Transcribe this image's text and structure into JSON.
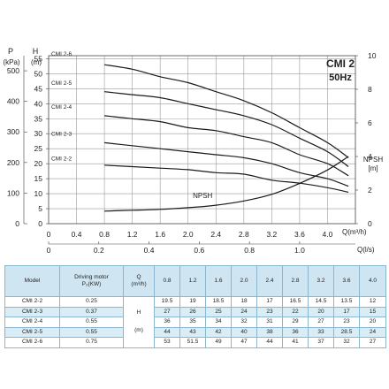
{
  "chart_data": {
    "type": "line",
    "title": "CMI 2",
    "subtitle": "50Hz",
    "y_left_outer": {
      "label": "P",
      "unit": "(kPa)",
      "ticks": [
        "0",
        "100",
        "200",
        "300",
        "400",
        "500"
      ],
      "range": [
        0,
        560
      ]
    },
    "y_left_inner": {
      "label": "H",
      "unit": "(m)",
      "ticks": [
        "0",
        "5",
        "10",
        "15",
        "20",
        "25",
        "30",
        "35",
        "40",
        "45",
        "50",
        "55"
      ],
      "range": [
        0,
        56
      ]
    },
    "y_right": {
      "label": "NPSH",
      "unit": "[m]",
      "ticks": [
        "0",
        "2",
        "4",
        "6",
        "8",
        "10"
      ],
      "range": [
        0,
        10
      ]
    },
    "x_main": {
      "label": "Q(m³/h)",
      "ticks": [
        "0",
        "0.4",
        "0.8",
        "1.2",
        "1.6",
        "2.0",
        "2.4",
        "2.8",
        "3.2",
        "3.6",
        "4.0"
      ],
      "range": [
        0,
        4.4
      ]
    },
    "x_secondary": {
      "label": "Q(l/s)",
      "ticks": [
        "0",
        "0.2",
        "0.4",
        "0.6",
        "0.8",
        "1.0"
      ]
    },
    "grid": true,
    "series": [
      {
        "name": "CMI 2-6",
        "x": [
          0.8,
          1.2,
          1.6,
          2.0,
          2.4,
          2.8,
          3.2,
          3.6,
          4.0,
          4.3
        ],
        "y": [
          53,
          51.5,
          49,
          47,
          44,
          41,
          37,
          32,
          27,
          22
        ]
      },
      {
        "name": "CMI 2-5",
        "x": [
          0.8,
          1.2,
          1.6,
          2.0,
          2.4,
          2.8,
          3.2,
          3.6,
          4.0,
          4.3
        ],
        "y": [
          44,
          43,
          42,
          40,
          38,
          36,
          33,
          28.5,
          24,
          19
        ]
      },
      {
        "name": "CMI 2-4",
        "x": [
          0.8,
          1.2,
          1.6,
          2.0,
          2.4,
          2.8,
          3.2,
          3.6,
          4.0,
          4.3
        ],
        "y": [
          36,
          35,
          34,
          32,
          31,
          29,
          27,
          23,
          20,
          16
        ]
      },
      {
        "name": "CMI 2-3",
        "x": [
          0.8,
          1.2,
          1.6,
          2.0,
          2.4,
          2.8,
          3.2,
          3.6,
          4.0,
          4.3
        ],
        "y": [
          27,
          26,
          25,
          24,
          23,
          22,
          20,
          17,
          15,
          12.5
        ]
      },
      {
        "name": "CMI 2-2",
        "x": [
          0.8,
          1.2,
          1.6,
          2.0,
          2.4,
          2.8,
          3.2,
          3.6,
          4.0,
          4.3
        ],
        "y": [
          19.5,
          19,
          18.5,
          18,
          17,
          16.5,
          14.5,
          13.5,
          12,
          10.5
        ]
      },
      {
        "name": "NPSH",
        "axis": "right",
        "x": [
          0.8,
          1.2,
          1.6,
          2.0,
          2.4,
          2.8,
          3.2,
          3.6,
          4.0,
          4.3
        ],
        "y": [
          0.75,
          0.8,
          0.85,
          0.95,
          1.1,
          1.35,
          1.75,
          2.4,
          3.2,
          4.0
        ]
      }
    ],
    "colors": {
      "curve": "#1a1a1a",
      "grid": "#9a9a9a",
      "header_bg": "#cfe6f2",
      "row_alt": "#d9edf6",
      "table_border": "#8ab7cf"
    }
  },
  "table": {
    "headers": {
      "model": "Model",
      "motor": "Driving motor",
      "motor_unit": "P₂(KW)",
      "q": "Q",
      "q_unit": "(m³/h)",
      "flows": [
        "0.8",
        "1.2",
        "1.6",
        "2.0",
        "2.4",
        "2.8",
        "3.2",
        "3.6",
        "4.0"
      ]
    },
    "h_label": "H",
    "h_unit": "(m)",
    "rows": [
      {
        "model": "CMI 2-2",
        "motor": "0.25",
        "values": [
          "19.5",
          "19",
          "18.5",
          "18",
          "17",
          "16.5",
          "14.5",
          "13.5",
          "12"
        ]
      },
      {
        "model": "CMI 2-3",
        "motor": "0.37",
        "values": [
          "27",
          "26",
          "25",
          "24",
          "23",
          "22",
          "20",
          "17",
          "15"
        ]
      },
      {
        "model": "CMI 2-4",
        "motor": "0.55",
        "values": [
          "36",
          "35",
          "34",
          "32",
          "31",
          "29",
          "27",
          "23",
          "20"
        ]
      },
      {
        "model": "CMI 2-5",
        "motor": "0.55",
        "values": [
          "44",
          "43",
          "42",
          "40",
          "38",
          "36",
          "33",
          "28.5",
          "24"
        ]
      },
      {
        "model": "CMI 2-6",
        "motor": "0.75",
        "values": [
          "53",
          "51.5",
          "49",
          "47",
          "44",
          "41",
          "37",
          "32",
          "27"
        ]
      }
    ]
  }
}
